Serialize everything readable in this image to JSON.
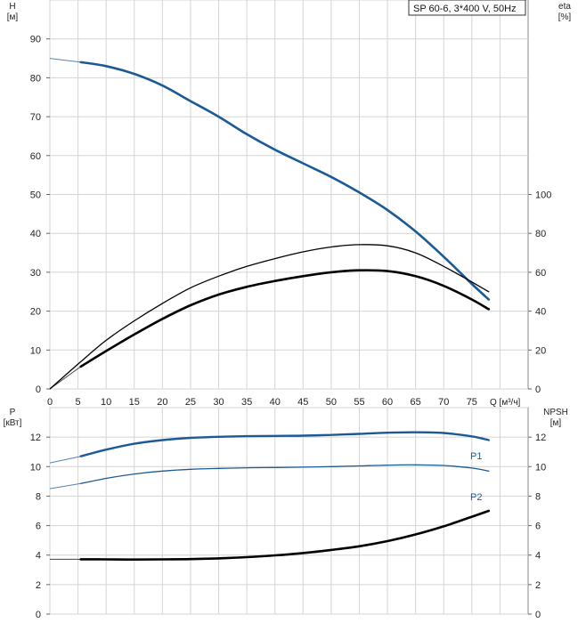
{
  "header_label": "SP 60-6, 3*400 V, 50Hz",
  "colors": {
    "blue": "#1c5a96",
    "black": "#000000",
    "grid": "#d4d4d4"
  },
  "chart_data": [
    {
      "type": "line",
      "name": "top",
      "left_axis": {
        "label_line1": "H",
        "label_line2": "[м]",
        "ylim": [
          0,
          100
        ],
        "ticks": [
          0,
          10,
          20,
          30,
          40,
          50,
          60,
          70,
          80,
          90
        ]
      },
      "right_axis": {
        "label_line1": "eta",
        "label_line2": "[%]",
        "ylim": [
          0,
          200
        ],
        "ticks": [
          0,
          20,
          40,
          60,
          80,
          100
        ]
      },
      "x_axis": {
        "label": "Q [м³/ч]",
        "xlim": [
          0,
          85
        ],
        "ticks": [
          0,
          5,
          10,
          15,
          20,
          25,
          30,
          35,
          40,
          45,
          50,
          55,
          60,
          65,
          70,
          75
        ]
      },
      "grid": true,
      "series": [
        {
          "key": "H",
          "axis": "left",
          "color": "blue",
          "width": 2.6,
          "x": [
            5.5,
            10,
            15,
            20,
            25,
            30,
            35,
            40,
            45,
            50,
            55,
            60,
            65,
            70,
            75,
            78
          ],
          "y": [
            84,
            83,
            81,
            78,
            74,
            70,
            65.5,
            61.5,
            58,
            54.5,
            50.5,
            46,
            40.5,
            34,
            27,
            23
          ],
          "ext_x": [
            0,
            5.5
          ],
          "ext_y": [
            85,
            84
          ]
        },
        {
          "key": "eta_total",
          "axis": "right",
          "color": "black",
          "width": 1.3,
          "x": [
            0,
            5.5,
            10,
            15,
            20,
            25,
            30,
            35,
            40,
            45,
            50,
            55,
            60,
            65,
            70,
            75,
            78
          ],
          "y": [
            0,
            14,
            25,
            35,
            44,
            52,
            58,
            63,
            67,
            70.5,
            73,
            74.2,
            73.6,
            70,
            63,
            55,
            50
          ]
        },
        {
          "key": "eta_pump",
          "axis": "right",
          "color": "black",
          "width": 2.6,
          "x": [
            5.5,
            10,
            15,
            20,
            25,
            30,
            35,
            40,
            45,
            50,
            55,
            60,
            65,
            70,
            75,
            78
          ],
          "y": [
            11.5,
            19.5,
            28,
            36,
            43,
            48.5,
            52.5,
            55.5,
            58,
            60,
            61,
            60.6,
            58,
            53,
            46,
            41
          ],
          "ext_x": [
            0,
            5.5
          ],
          "ext_y": [
            0,
            11.5
          ]
        }
      ]
    },
    {
      "type": "line",
      "name": "bottom",
      "left_axis": {
        "label_line1": "P",
        "label_line2": "[кВт]",
        "ylim": [
          0,
          14
        ],
        "ticks": [
          0,
          2,
          4,
          6,
          8,
          10,
          12
        ]
      },
      "right_axis": {
        "label_line1": "NPSH",
        "label_line2": "[м]",
        "ylim": [
          0,
          14
        ],
        "ticks": [
          0,
          2,
          4,
          6,
          8,
          10,
          12
        ]
      },
      "x_axis": {
        "xlim": [
          0,
          85
        ],
        "ticks": [
          0,
          5,
          10,
          15,
          20,
          25,
          30,
          35,
          40,
          45,
          50,
          55,
          60,
          65,
          70,
          75
        ]
      },
      "grid": true,
      "series": [
        {
          "key": "P1",
          "name": "P1",
          "axis": "left",
          "color": "blue",
          "width": 2.4,
          "x": [
            5.5,
            10,
            15,
            20,
            25,
            30,
            35,
            40,
            45,
            50,
            55,
            60,
            65,
            70,
            75,
            78
          ],
          "y": [
            10.7,
            11.15,
            11.55,
            11.8,
            11.95,
            12.02,
            12.06,
            12.08,
            12.1,
            12.15,
            12.22,
            12.3,
            12.33,
            12.28,
            12.05,
            11.8
          ],
          "ext_x": [
            0,
            5.5
          ],
          "ext_y": [
            10.25,
            10.7
          ]
        },
        {
          "key": "P2",
          "name": "P2",
          "axis": "left",
          "color": "blue",
          "width": 1.3,
          "x": [
            5.5,
            10,
            15,
            20,
            25,
            30,
            35,
            40,
            45,
            50,
            55,
            60,
            65,
            70,
            75,
            78
          ],
          "y": [
            8.85,
            9.2,
            9.5,
            9.7,
            9.82,
            9.88,
            9.92,
            9.94,
            9.96,
            10.0,
            10.05,
            10.1,
            10.12,
            10.08,
            9.9,
            9.7
          ],
          "ext_x": [
            0,
            5.5
          ],
          "ext_y": [
            8.5,
            8.85
          ]
        },
        {
          "key": "NPSH",
          "axis": "right",
          "color": "black",
          "width": 2.6,
          "x": [
            5.5,
            10,
            15,
            20,
            25,
            30,
            35,
            40,
            45,
            50,
            55,
            60,
            65,
            70,
            75,
            78
          ],
          "y": [
            3.72,
            3.71,
            3.7,
            3.71,
            3.73,
            3.78,
            3.86,
            3.98,
            4.14,
            4.35,
            4.6,
            4.95,
            5.4,
            5.95,
            6.6,
            7.0
          ],
          "ext_x": [
            0,
            5.5
          ],
          "ext_y": [
            3.72,
            3.72
          ]
        }
      ]
    }
  ]
}
